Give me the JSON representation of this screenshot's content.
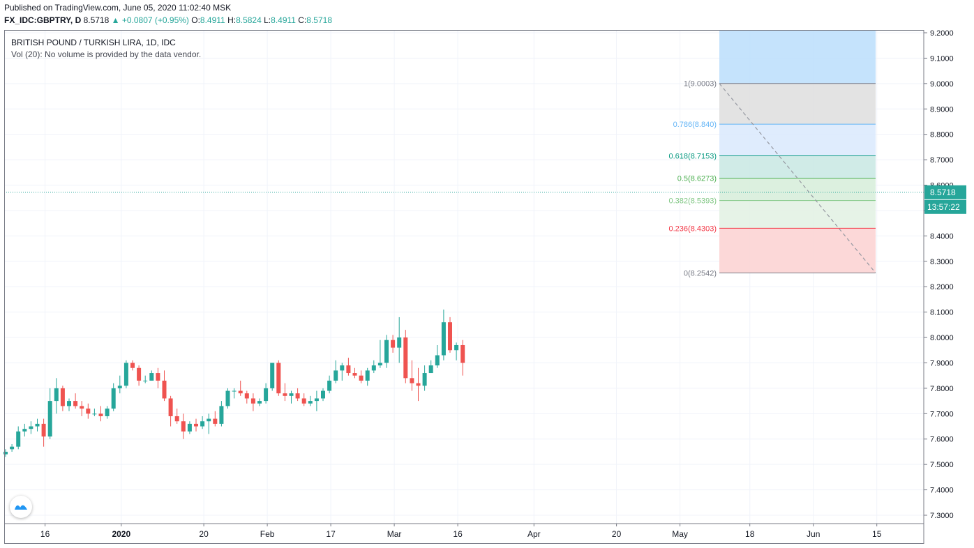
{
  "header": {
    "published": "Published on TradingView.com, June 05, 2020 11:02:40 MSK",
    "symbol": "FX_IDC:GBPTRY, D",
    "last": "8.5718",
    "change": "▲ +0.0807 (+0.95%)",
    "o_label": "O:",
    "o": "8.4911",
    "h_label": "H:",
    "h": "8.5824",
    "l_label": "L:",
    "l": "8.4911",
    "c_label": "C:",
    "c": "8.5718"
  },
  "legend": {
    "title": "BRITISH POUND / TURKISH LIRA, 1D, IDC",
    "volume": "Vol (20): No volume is provided by the data vendor."
  },
  "price_tag": {
    "value": "8.5718",
    "countdown": "13:57:22"
  },
  "colors": {
    "up": "#26a69a",
    "down": "#ef5350",
    "last_line": "#26a69a",
    "grid": "#f0f3fa",
    "fib_blue": "#2196f3"
  },
  "chart_data": {
    "type": "candlestick",
    "ylim": [
      7.27,
      9.22
    ],
    "y_ticks": [
      "9.2000",
      "9.1000",
      "9.0000",
      "8.9000",
      "8.8000",
      "8.7000",
      "8.6000",
      "8.5000",
      "8.4000",
      "8.3000",
      "8.2000",
      "8.1000",
      "8.0000",
      "7.9000",
      "7.8000",
      "7.7000",
      "7.6000",
      "7.5000",
      "7.4000",
      "7.3000"
    ],
    "x_ticks": [
      {
        "label": "16",
        "index": 6
      },
      {
        "label": "2020",
        "index": 18
      },
      {
        "label": "20",
        "index": 31
      },
      {
        "label": "Feb",
        "index": 41
      },
      {
        "label": "17",
        "index": 51
      },
      {
        "label": "Mar",
        "index": 61
      },
      {
        "label": "16",
        "index": 71
      },
      {
        "label": "Apr",
        "index": 83
      },
      {
        "label": "20",
        "index": 96
      },
      {
        "label": "May",
        "index": 106
      },
      {
        "label": "18",
        "index": 117
      },
      {
        "label": "Jun",
        "index": 127
      },
      {
        "label": "15",
        "index": 137
      }
    ],
    "last_price": 8.5718,
    "candles": [
      [
        7.54,
        7.56,
        7.53,
        7.55
      ],
      [
        7.56,
        7.58,
        7.55,
        7.57
      ],
      [
        7.57,
        7.65,
        7.56,
        7.63
      ],
      [
        7.63,
        7.66,
        7.61,
        7.64
      ],
      [
        7.64,
        7.67,
        7.62,
        7.65
      ],
      [
        7.65,
        7.68,
        7.63,
        7.66
      ],
      [
        7.66,
        7.68,
        7.57,
        7.61
      ],
      [
        7.61,
        7.8,
        7.6,
        7.75
      ],
      [
        7.75,
        7.84,
        7.7,
        7.8
      ],
      [
        7.8,
        7.81,
        7.71,
        7.73
      ],
      [
        7.73,
        7.76,
        7.71,
        7.75
      ],
      [
        7.75,
        7.78,
        7.72,
        7.73
      ],
      [
        7.73,
        7.75,
        7.69,
        7.72
      ],
      [
        7.72,
        7.74,
        7.68,
        7.7
      ],
      [
        7.7,
        7.72,
        7.69,
        7.7
      ],
      [
        7.7,
        7.73,
        7.67,
        7.69
      ],
      [
        7.69,
        7.73,
        7.68,
        7.72
      ],
      [
        7.72,
        7.82,
        7.71,
        7.8
      ],
      [
        7.8,
        7.85,
        7.78,
        7.81
      ],
      [
        7.81,
        7.91,
        7.8,
        7.9
      ],
      [
        7.9,
        7.91,
        7.87,
        7.88
      ],
      [
        7.88,
        7.89,
        7.81,
        7.83
      ],
      [
        7.83,
        7.85,
        7.82,
        7.83
      ],
      [
        7.83,
        7.87,
        7.83,
        7.86
      ],
      [
        7.86,
        7.88,
        7.8,
        7.83
      ],
      [
        7.83,
        7.87,
        7.75,
        7.76
      ],
      [
        7.76,
        7.77,
        7.65,
        7.69
      ],
      [
        7.69,
        7.72,
        7.66,
        7.67
      ],
      [
        7.67,
        7.7,
        7.6,
        7.63
      ],
      [
        7.63,
        7.67,
        7.62,
        7.66
      ],
      [
        7.66,
        7.68,
        7.63,
        7.65
      ],
      [
        7.65,
        7.69,
        7.64,
        7.67
      ],
      [
        7.67,
        7.7,
        7.62,
        7.68
      ],
      [
        7.68,
        7.71,
        7.65,
        7.66
      ],
      [
        7.66,
        7.75,
        7.65,
        7.73
      ],
      [
        7.73,
        7.8,
        7.72,
        7.79
      ],
      [
        7.79,
        7.8,
        7.76,
        7.79
      ],
      [
        7.79,
        7.83,
        7.77,
        7.78
      ],
      [
        7.78,
        7.79,
        7.74,
        7.76
      ],
      [
        7.76,
        7.78,
        7.71,
        7.74
      ],
      [
        7.74,
        7.76,
        7.73,
        7.75
      ],
      [
        7.75,
        7.82,
        7.74,
        7.8
      ],
      [
        7.8,
        7.9,
        7.79,
        7.9
      ],
      [
        7.9,
        7.91,
        7.77,
        7.78
      ],
      [
        7.78,
        7.82,
        7.75,
        7.77
      ],
      [
        7.77,
        7.79,
        7.74,
        7.78
      ],
      [
        7.78,
        7.8,
        7.75,
        7.76
      ],
      [
        7.76,
        7.78,
        7.73,
        7.74
      ],
      [
        7.74,
        7.77,
        7.73,
        7.75
      ],
      [
        7.75,
        7.79,
        7.71,
        7.76
      ],
      [
        7.76,
        7.8,
        7.75,
        7.79
      ],
      [
        7.79,
        7.85,
        7.78,
        7.83
      ],
      [
        7.83,
        7.91,
        7.82,
        7.87
      ],
      [
        7.87,
        7.9,
        7.83,
        7.89
      ],
      [
        7.89,
        7.92,
        7.85,
        7.86
      ],
      [
        7.86,
        7.88,
        7.84,
        7.85
      ],
      [
        7.85,
        7.87,
        7.82,
        7.83
      ],
      [
        7.83,
        7.88,
        7.81,
        7.87
      ],
      [
        7.87,
        7.91,
        7.86,
        7.89
      ],
      [
        7.89,
        7.99,
        7.88,
        7.9
      ],
      [
        7.9,
        8.01,
        7.88,
        7.99
      ],
      [
        7.99,
        8.01,
        7.94,
        7.96
      ],
      [
        7.96,
        8.08,
        7.9,
        8.0
      ],
      [
        8.0,
        8.03,
        7.82,
        7.84
      ],
      [
        7.84,
        7.91,
        7.79,
        7.82
      ],
      [
        7.82,
        7.88,
        7.75,
        7.81
      ],
      [
        7.81,
        7.89,
        7.79,
        7.86
      ],
      [
        7.86,
        7.91,
        7.87,
        7.89
      ],
      [
        7.89,
        7.97,
        7.88,
        7.93
      ],
      [
        7.93,
        8.11,
        7.91,
        8.06
      ],
      [
        8.06,
        8.08,
        7.94,
        7.95
      ],
      [
        7.95,
        7.98,
        7.91,
        7.97
      ],
      [
        7.97,
        7.99,
        7.85,
        7.9
      ]
    ],
    "fib": {
      "levels": [
        {
          "label": "1(9.0003)",
          "price": 9.0003,
          "color": "#787b86"
        },
        {
          "label": "0.786(8.840)",
          "price": 8.84,
          "color": "#64b5f6"
        },
        {
          "label": "0.618(8.7153)",
          "price": 8.7153,
          "color": "#089981"
        },
        {
          "label": "0.5(8.6273)",
          "price": 8.6273,
          "color": "#4caf50"
        },
        {
          "label": "0.382(8.5393)",
          "price": 8.5393,
          "color": "#81c784"
        },
        {
          "label": "0.236(8.4303)",
          "price": 8.4303,
          "color": "#f23645"
        },
        {
          "label": "0(8.2542)",
          "price": 8.2542,
          "color": "#787b86"
        }
      ]
    }
  }
}
